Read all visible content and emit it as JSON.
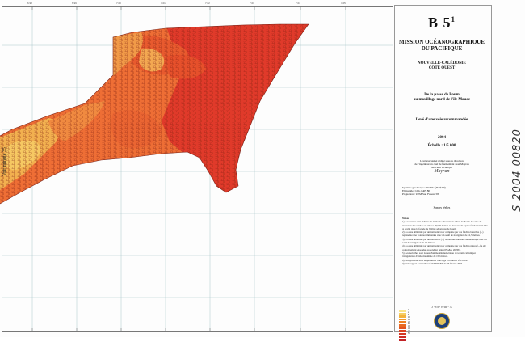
{
  "header": {
    "chart_number": "B 5",
    "chart_superscript": "1",
    "mission": "MISSION OCÉANOGRAPHIQUE DU PACIFIQUE",
    "region": "NOUVELLE-CALÉDONIE",
    "coast": "CÔTE OUEST",
    "title_line1": "De la passe de Poum",
    "title_line2": "au mouillage nord de l'île Mouac",
    "survey_type": "Levé d'une voie recommandée",
    "year": "2004",
    "scale": "Échelle : 1/5 000"
  },
  "credits": {
    "line1": "Levé exécuté et rédigé sous la direction",
    "line2": "de l'ingénieur en chef de l'armement Jean Mayran",
    "line3": "directeur technique",
    "signature": "Mayran"
  },
  "geodesy": {
    "line1": "Système géodésique : RGNC (IT$$/90)",
    "line2": "Ellipsoïde : IAG GRS 80",
    "line3": "Projection : UTM Sud Fuseau 58"
  },
  "units": "Sondes réelles",
  "notes": {
    "header": "Notes",
    "items": [
      "1) Les sondes sont réduites de la marée observée au wharf de Poum. Le zéro de réduction des sondes est situé à 18,595 mètres au-dessous du repère fondamental C3a 4, scellé dans la façade de l'église adventiste de Poum.",
      "2) La zone délimitée par un trait tenté noir complète par des flèches blanches (...) représente une voie recommandée avec un seuil de navigation de 12,5 mètres.",
      "3) La zone délimitée par un trait tirêté (...) représente une zone de mouillage avec un seuil de navigation de 10 mètres.",
      "4) La zone délimitée par un trait tenté noir complète par des flèches noires (...) a été complètement ensondée au sondeur latéral EG&G 260TD.",
      "5) Les isobathes sont issues d'un modèle numérique de terrain calculé par triangulation d'arête maximale de 150 mètres.",
      "6) Les symboles sont empruntés à l'ouvrage 1D édition n°5-2002.",
      "7) Voir rapport particulier n°10 MOP/NP du 06 février 2004."
    ]
  },
  "annotations": {
    "bottom_scribble": "1 voie vrai - A",
    "left_edge": "Voir minute 35",
    "right_edge_handwriting": "S 2004 00820"
  },
  "legend": {
    "colors": [
      "#f9e48a",
      "#f6cf63",
      "#f3b33e",
      "#f09a2c",
      "#ee8224",
      "#e96a22",
      "#e35421",
      "#dd4322",
      "#d53623",
      "#cc2b24",
      "#c22226"
    ],
    "labels": [
      "0",
      "2",
      "5",
      "10",
      "15",
      "20",
      "25",
      "30",
      "35",
      "40",
      "50"
    ]
  },
  "map_colors": {
    "deep": "#e03a2a",
    "mid": "#ee6e35",
    "shallow": "#f19a48",
    "shoal": "#f2b04f",
    "grid": "#9bbec4",
    "frame": "#444444"
  },
  "grid_labels": [
    "6.98",
    "6.99",
    "7.00",
    "7.01",
    "7.02",
    "7.03",
    "7.04",
    "7.05"
  ]
}
